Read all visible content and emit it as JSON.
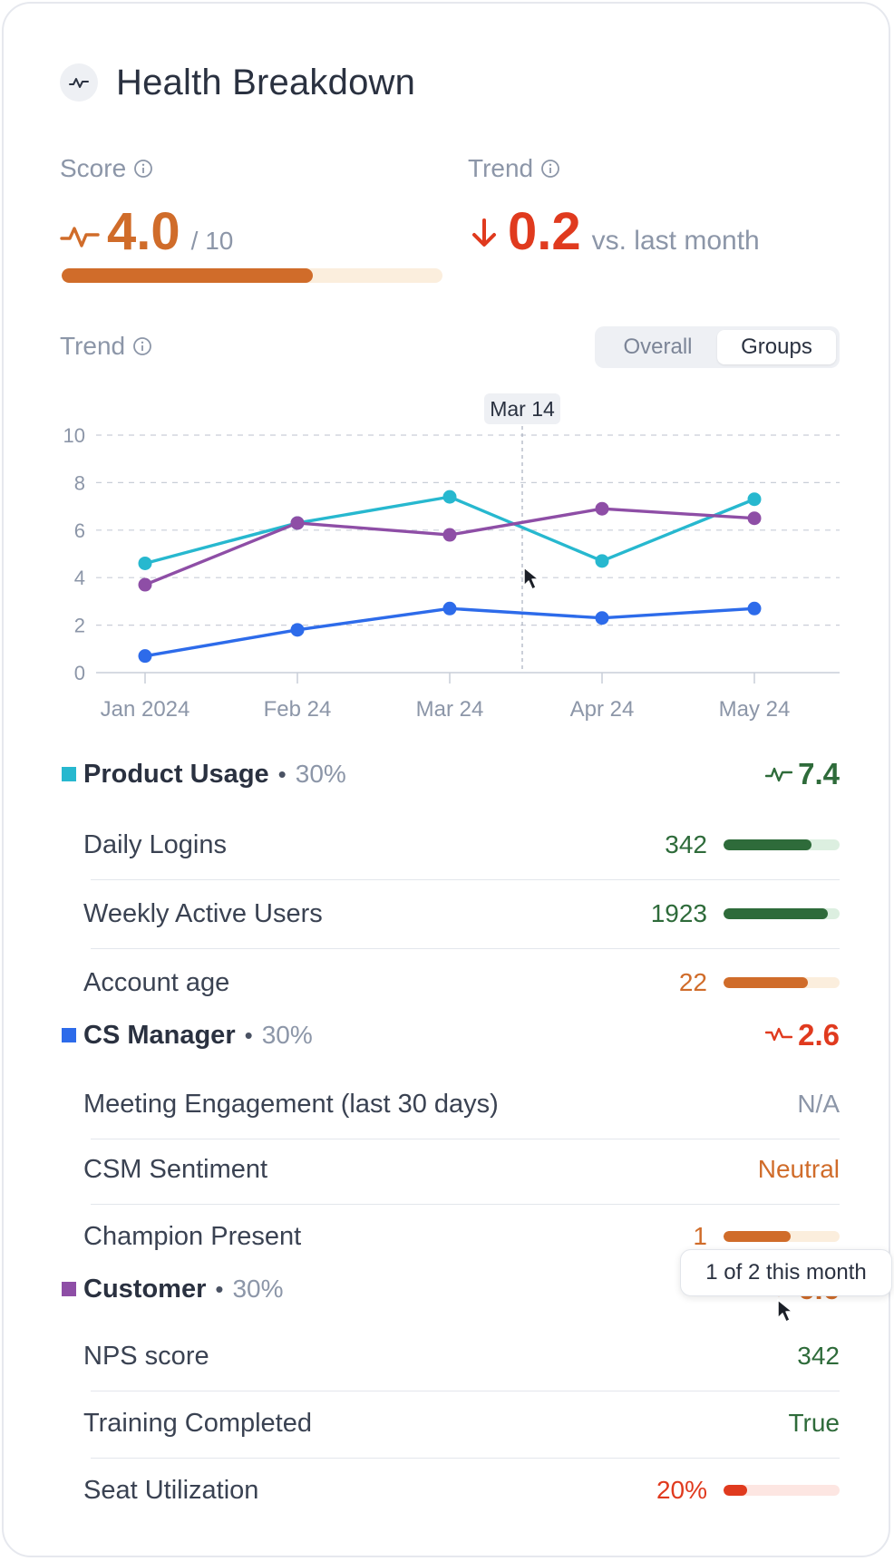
{
  "header": {
    "title": "Health Breakdown",
    "icon": "pulse-icon"
  },
  "score": {
    "label": "Score",
    "value": "4.0",
    "denominator": "/ 10",
    "progress": 0.66,
    "color": "#d06c2a",
    "track": "#fbeedd"
  },
  "trend_summary": {
    "label": "Trend",
    "value": "0.2",
    "suffix": "vs. last month",
    "direction": "down",
    "color": "#e03a1e"
  },
  "trend_section": {
    "label": "Trend",
    "toggle": {
      "options": [
        "Overall",
        "Groups"
      ],
      "selected": "Groups"
    }
  },
  "chart_data": {
    "type": "line",
    "x": [
      "Jan 2024",
      "Feb 24",
      "Mar 24",
      "Apr 24",
      "May 24"
    ],
    "ylim": [
      0,
      10
    ],
    "yticks": [
      0,
      2,
      4,
      6,
      8,
      10
    ],
    "grid": true,
    "hover_label": "Mar 14",
    "series": [
      {
        "key": "product-usage",
        "color": "#27b8cf",
        "values": [
          4.6,
          6.3,
          7.4,
          4.7,
          7.3
        ]
      },
      {
        "key": "customer",
        "color": "#8e4ea6",
        "values": [
          3.7,
          6.3,
          5.8,
          6.9,
          6.5
        ]
      },
      {
        "key": "cs-manager",
        "color": "#2d6bea",
        "values": [
          0.7,
          1.8,
          2.7,
          2.3,
          2.7
        ]
      }
    ]
  },
  "groups": [
    {
      "name": "Product Usage",
      "weight": "30%",
      "score": "7.4",
      "score_color": "#2e6b3a",
      "swatch": "#27b8cf",
      "icon": "pulse-icon",
      "metrics": [
        {
          "label": "Daily Logins",
          "value": "342",
          "color": "#2e6b3a",
          "bar": 0.76,
          "bar_color": "#2e6b3a",
          "track": "#dcefe0"
        },
        {
          "label": "Weekly Active Users",
          "value": "1923",
          "color": "#2e6b3a",
          "bar": 0.9,
          "bar_color": "#2e6b3a",
          "track": "#dcefe0"
        },
        {
          "label": "Account age",
          "value": "22",
          "color": "#d06c2a",
          "bar": 0.73,
          "bar_color": "#d06c2a",
          "track": "#fbeedd"
        }
      ]
    },
    {
      "name": "CS Manager",
      "weight": "30%",
      "score": "2.6",
      "score_color": "#e03a1e",
      "swatch": "#2d6bea",
      "icon": "pulse-down-icon",
      "metrics": [
        {
          "label": "Meeting Engagement (last 30 days)",
          "value": "N/A",
          "color": "#8c96a8"
        },
        {
          "label": "CSM Sentiment",
          "value": "Neutral",
          "color": "#d06c2a"
        },
        {
          "label": "Champion Present",
          "value": "1",
          "color": "#d06c2a",
          "bar": 0.58,
          "bar_color": "#d06c2a",
          "track": "#fbeedd"
        }
      ]
    },
    {
      "name": "Customer",
      "weight": "30%",
      "score": "6.6",
      "score_color": "#d06c2a",
      "swatch": "#8e4ea6",
      "icon": "pulse-icon",
      "metrics": [
        {
          "label": "NPS score",
          "value": "342",
          "color": "#2e6b3a"
        },
        {
          "label": "Training Completed",
          "value": "True",
          "color": "#2e6b3a"
        },
        {
          "label": "Seat Utilization",
          "value": "20%",
          "color": "#e03a1e",
          "bar": 0.2,
          "bar_color": "#e03a1e",
          "track": "#fde6e2"
        }
      ]
    }
  ],
  "tooltip": {
    "text": "1 of 2 this month"
  }
}
